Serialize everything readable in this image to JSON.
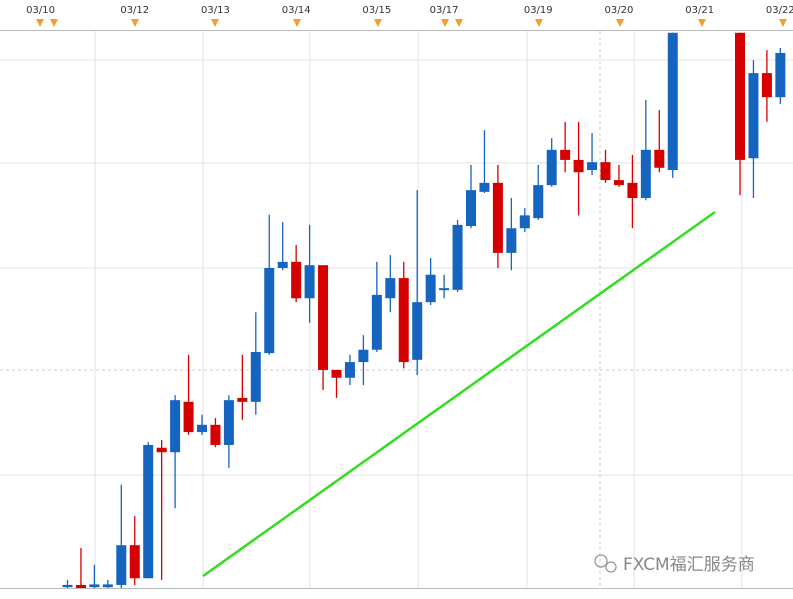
{
  "chart_data": {
    "type": "candlestick",
    "categories": [
      "03/10",
      null,
      null,
      null,
      null,
      null,
      null,
      "03/12",
      null,
      null,
      null,
      null,
      null,
      "03/13",
      null,
      null,
      null,
      null,
      null,
      "03/14",
      null,
      null,
      null,
      null,
      null,
      "03/15",
      null,
      null,
      null,
      null,
      "03/17",
      null,
      null,
      null,
      null,
      null,
      null,
      "03/19",
      null,
      null,
      null,
      null,
      null,
      "03/20",
      null,
      null,
      null,
      null,
      null,
      "03/21",
      null,
      null,
      null,
      null,
      null,
      "03/22"
    ],
    "open": [
      null,
      null,
      0.5,
      0.9,
      0.5,
      0.5,
      0.9,
      8.0,
      2.1,
      25.4,
      24.6,
      33.6,
      28.2,
      29.5,
      25.9,
      34.3,
      33.6,
      42.3,
      57.5,
      58.6,
      52.1,
      58.0,
      39.3,
      37.9,
      40.7,
      42.9,
      52.1,
      55.7,
      41.1,
      51.4,
      53.6,
      53.6,
      65.0,
      71.1,
      72.7,
      60.2,
      64.6,
      66.4,
      72.3,
      78.6,
      76.8,
      75.0,
      76.4,
      73.2,
      72.7,
      70.0,
      78.6,
      75.0,
      null,
      null,
      null,
      null,
      99.5,
      77.1,
      92.3,
      88.0
    ],
    "high": [
      null,
      null,
      1.8,
      7.5,
      4.5,
      1.8,
      18.8,
      13.2,
      26.4,
      26.8,
      34.8,
      42.0,
      31.3,
      30.7,
      34.8,
      42.0,
      49.6,
      67.0,
      65.7,
      61.6,
      65.2,
      58.0,
      39.3,
      42.0,
      45.5,
      58.6,
      59.8,
      58.6,
      71.4,
      59.3,
      56.3,
      66.1,
      75.9,
      82.1,
      75.9,
      70.0,
      68.2,
      75.9,
      80.7,
      83.6,
      83.6,
      81.6,
      78.6,
      75.9,
      77.7,
      87.5,
      85.7,
      99.5,
      null,
      null,
      null,
      null,
      99.5,
      94.6,
      96.4,
      96.8
    ],
    "low": [
      null,
      null,
      0,
      0,
      0,
      0,
      0,
      0.9,
      2.1,
      1.8,
      14.6,
      27.7,
      27.7,
      25.5,
      21.8,
      30.4,
      31.3,
      42.0,
      57.1,
      51.4,
      47.7,
      35.7,
      34.3,
      36.6,
      36.6,
      42.5,
      49.6,
      39.6,
      38.4,
      50.9,
      52.1,
      53.2,
      64.6,
      70.9,
      57.5,
      57.1,
      63.9,
      66.1,
      72.0,
      74.6,
      66.9,
      74.1,
      72.7,
      72.0,
      64.6,
      69.6,
      74.6,
      73.6,
      null,
      null,
      null,
      null,
      70.5,
      70.0,
      83.6,
      86.8
    ],
    "close": [
      null,
      null,
      0.9,
      0,
      1.0,
      1.0,
      8.0,
      2.1,
      25.9,
      24.6,
      33.9,
      28.2,
      29.5,
      25.9,
      33.9,
      33.6,
      42.5,
      57.5,
      58.6,
      52.1,
      58.0,
      39.3,
      37.9,
      40.7,
      42.9,
      52.7,
      55.7,
      40.7,
      51.4,
      56.3,
      53.9,
      65.2,
      71.4,
      72.7,
      60.2,
      64.6,
      66.9,
      72.3,
      78.6,
      76.8,
      74.6,
      76.4,
      73.2,
      72.3,
      70.0,
      78.6,
      75.4,
      99.5,
      null,
      null,
      null,
      null,
      76.8,
      92.3,
      88.0,
      95.9
    ],
    "up_color": "#1565c0",
    "down_color": "#d50000",
    "ylim": [
      0,
      100
    ],
    "watermark": "FXCM福汇服务商"
  }
}
